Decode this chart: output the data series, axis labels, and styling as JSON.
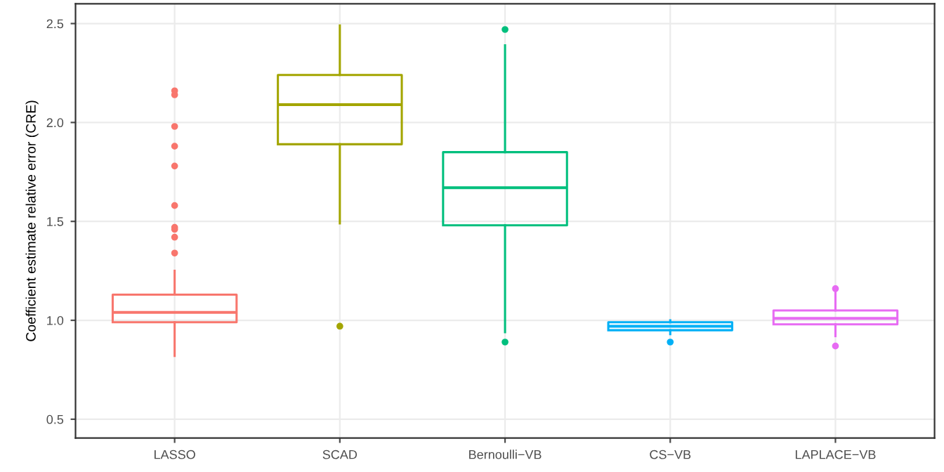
{
  "chart_data": {
    "type": "box",
    "ylabel": "Coefficient estimate relative error (CRE)",
    "categories": [
      "LASSO",
      "SCAD",
      "Bernoulli−VB",
      "CS−VB",
      "LAPLACE−VB"
    ],
    "colors": [
      "#f8766d",
      "#a3a500",
      "#00bf7d",
      "#00b0f6",
      "#e76bf3"
    ],
    "boxes": [
      {
        "low": 0.82,
        "q1": 0.99,
        "median": 1.04,
        "q3": 1.13,
        "high": 1.25,
        "outliers": [
          2.16,
          2.14,
          1.98,
          1.88,
          1.78,
          1.58,
          1.47,
          1.46,
          1.42,
          1.34
        ]
      },
      {
        "low": 1.49,
        "q1": 1.89,
        "median": 2.09,
        "q3": 2.24,
        "high": 2.49,
        "outliers": [
          0.97
        ]
      },
      {
        "low": 0.94,
        "q1": 1.48,
        "median": 1.67,
        "q3": 1.85,
        "high": 2.39,
        "outliers": [
          2.47,
          0.89
        ]
      },
      {
        "low": 0.93,
        "q1": 0.95,
        "median": 0.97,
        "q3": 0.99,
        "high": 1.0,
        "outliers": [
          0.89
        ]
      },
      {
        "low": 0.92,
        "q1": 0.98,
        "median": 1.01,
        "q3": 1.05,
        "high": 1.15,
        "outliers": [
          1.16,
          0.87
        ]
      }
    ],
    "ylim": [
      0.405,
      2.6
    ],
    "yticks": [
      0.5,
      {
        "value": 1,
        "label": "1.0"
      },
      1.5,
      {
        "value": 2,
        "label": "2.0"
      },
      2.5
    ],
    "grid": true,
    "legend": false
  }
}
